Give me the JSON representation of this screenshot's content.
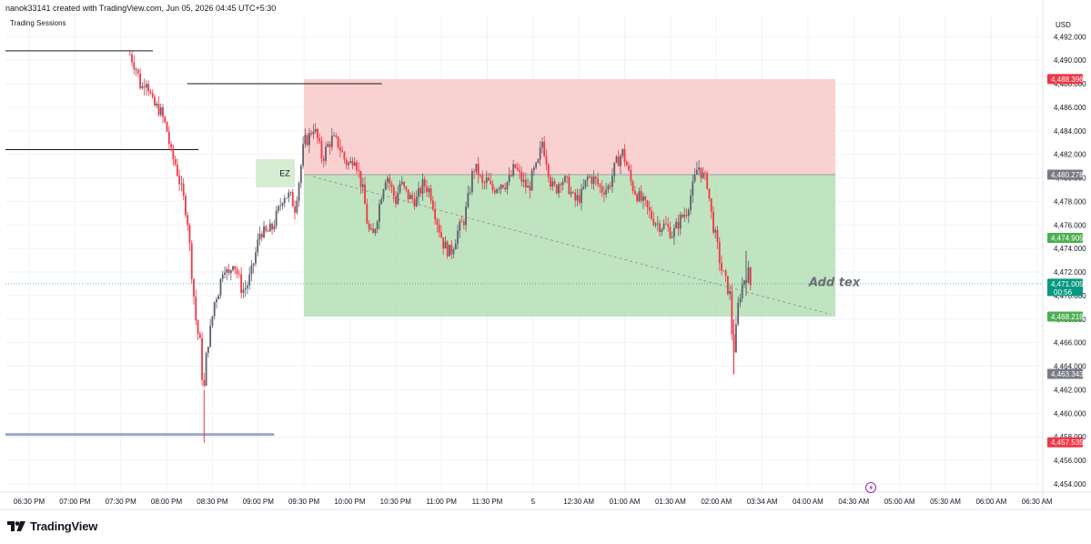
{
  "header": {
    "attribution": "nanok33141 created with TradingView.com, Jun 05, 2026 04:45 UTC+5:30"
  },
  "indicator": {
    "label": "Trading Sessions"
  },
  "footer": {
    "brand": "TradingView"
  },
  "chart_data": {
    "type": "candlestick",
    "currency": "USD",
    "ylim": [
      4453.3,
      4493.8
    ],
    "y_ticks": [
      "4,492.000",
      "4,490.000",
      "4,488.000",
      "4,486.000",
      "4,484.000",
      "4,482.000",
      "4,480.000",
      "4,478.000",
      "4,476.000",
      "4,474.000",
      "4,472.000",
      "4,470.000",
      "4,468.000",
      "4,466.000",
      "4,464.000",
      "4,462.000",
      "4,460.000",
      "4,458.000",
      "4,456.000",
      "4,454.000"
    ],
    "y_tick_values": [
      4492,
      4490,
      4488,
      4486,
      4484,
      4482,
      4480,
      4478,
      4476,
      4474,
      4472,
      4470,
      4468,
      4466,
      4464,
      4462,
      4460,
      4458,
      4456,
      4454
    ],
    "x_ticks": [
      "06:30 PM",
      "07:00 PM",
      "07:30 PM",
      "08:00 PM",
      "08:30 PM",
      "09:00 PM",
      "09:30 PM",
      "10:00 PM",
      "10:30 PM",
      "11:00 PM",
      "11:30 PM",
      "5",
      "12:30 AM",
      "01:00 AM",
      "01:30 AM",
      "02:00 AM",
      "03:34 AM",
      "04:00 AM",
      "04:30 AM",
      "05:00 AM",
      "05:30 AM",
      "06:00 AM",
      "06:30 AM"
    ],
    "x_tick_index": [
      0,
      1,
      2,
      3,
      4,
      5,
      6,
      7,
      8,
      9,
      10,
      11,
      12,
      13,
      14,
      15,
      16,
      17,
      18,
      19,
      20,
      21,
      22
    ],
    "price_path": [
      [
        2.2,
        4490.5
      ],
      [
        2.35,
        4489.2
      ],
      [
        2.45,
        4487.5
      ],
      [
        2.55,
        4488.6
      ],
      [
        2.7,
        4486.2
      ],
      [
        2.85,
        4485.8
      ],
      [
        3.0,
        4484.2
      ],
      [
        3.1,
        4482.0
      ],
      [
        3.2,
        4481.1
      ],
      [
        3.3,
        4479.4
      ],
      [
        3.45,
        4476.8
      ],
      [
        3.55,
        4472.0
      ],
      [
        3.65,
        4467.5
      ],
      [
        3.75,
        4465.5
      ],
      [
        3.8,
        4461.0
      ],
      [
        3.88,
        4465.6
      ],
      [
        3.95,
        4466.9
      ],
      [
        4.05,
        4469.6
      ],
      [
        4.15,
        4470.6
      ],
      [
        4.25,
        4472.8
      ],
      [
        4.35,
        4471.5
      ],
      [
        4.45,
        4473.0
      ],
      [
        4.55,
        4471.8
      ],
      [
        4.65,
        4470.4
      ],
      [
        4.75,
        4470.8
      ],
      [
        4.85,
        4471.9
      ],
      [
        4.95,
        4473.7
      ],
      [
        5.05,
        4475.6
      ],
      [
        5.15,
        4475.2
      ],
      [
        5.3,
        4475.7
      ],
      [
        5.45,
        4477.3
      ],
      [
        5.55,
        4478.6
      ],
      [
        5.7,
        4478.4
      ],
      [
        5.8,
        4477.5
      ],
      [
        5.9,
        4480.0
      ],
      [
        6.0,
        4483.0
      ],
      [
        6.1,
        4483.4
      ],
      [
        6.2,
        4484.4
      ],
      [
        6.3,
        4483.2
      ],
      [
        6.4,
        4481.6
      ],
      [
        6.5,
        4482.6
      ],
      [
        6.6,
        4483.3
      ],
      [
        6.75,
        4482.9
      ],
      [
        6.9,
        4481.4
      ],
      [
        7.0,
        4481.1
      ],
      [
        7.1,
        4482.0
      ],
      [
        7.2,
        4480.3
      ],
      [
        7.3,
        4478.6
      ],
      [
        7.4,
        4475.6
      ],
      [
        7.5,
        4474.9
      ],
      [
        7.6,
        4476.8
      ],
      [
        7.7,
        4478.9
      ],
      [
        7.8,
        4480.4
      ],
      [
        7.9,
        4479.2
      ],
      [
        8.0,
        4478.0
      ],
      [
        8.1,
        4479.6
      ],
      [
        8.2,
        4478.9
      ],
      [
        8.3,
        4478.3
      ],
      [
        8.45,
        4478.1
      ],
      [
        8.6,
        4479.5
      ],
      [
        8.75,
        4478.9
      ],
      [
        8.9,
        4476.4
      ],
      [
        9.05,
        4474.3
      ],
      [
        9.2,
        4473.6
      ],
      [
        9.35,
        4475.4
      ],
      [
        9.5,
        4476.5
      ],
      [
        9.6,
        4478.6
      ],
      [
        9.7,
        4480.9
      ],
      [
        9.8,
        4480.5
      ],
      [
        9.9,
        4479.3
      ],
      [
        10.0,
        4479.8
      ],
      [
        10.1,
        4478.9
      ],
      [
        10.2,
        4479.3
      ],
      [
        10.3,
        4479.6
      ],
      [
        10.4,
        4479.5
      ],
      [
        10.5,
        4479.9
      ],
      [
        10.6,
        4481.0
      ],
      [
        10.7,
        4480.2
      ],
      [
        10.8,
        4479.5
      ],
      [
        10.9,
        4479.0
      ],
      [
        11.0,
        4480.4
      ],
      [
        11.1,
        4481.0
      ],
      [
        11.2,
        4483.1
      ],
      [
        11.3,
        4481.4
      ],
      [
        11.4,
        4479.3
      ],
      [
        11.5,
        4479.0
      ],
      [
        11.6,
        4480.0
      ],
      [
        11.75,
        4479.5
      ],
      [
        11.9,
        4478.0
      ],
      [
        12.05,
        4478.5
      ],
      [
        12.2,
        4480.1
      ],
      [
        12.35,
        4479.8
      ],
      [
        12.5,
        4479.0
      ],
      [
        12.65,
        4479.2
      ],
      [
        12.8,
        4481.1
      ],
      [
        12.95,
        4482.2
      ],
      [
        13.05,
        4481.0
      ],
      [
        13.15,
        4479.4
      ],
      [
        13.3,
        4478.4
      ],
      [
        13.45,
        4477.6
      ],
      [
        13.6,
        4476.6
      ],
      [
        13.75,
        4476.0
      ],
      [
        13.9,
        4475.9
      ],
      [
        14.05,
        4475.2
      ],
      [
        14.2,
        4476.4
      ],
      [
        14.35,
        4477.2
      ],
      [
        14.5,
        4479.4
      ],
      [
        14.6,
        4481.1
      ],
      [
        14.7,
        4480.2
      ],
      [
        14.8,
        4479.6
      ],
      [
        14.9,
        4476.6
      ],
      [
        15.0,
        4474.6
      ],
      [
        15.1,
        4472.4
      ],
      [
        15.2,
        4471.2
      ],
      [
        15.3,
        4470.0
      ],
      [
        15.35,
        4466.1
      ],
      [
        15.4,
        4465.2
      ],
      [
        15.45,
        4468.3
      ],
      [
        15.5,
        4469.9
      ],
      [
        15.6,
        4471.4
      ],
      [
        15.7,
        4471.9
      ],
      [
        15.75,
        4470.8
      ]
    ],
    "price_levels": [
      {
        "value": "4,488.396",
        "num": 4488.396,
        "color": "#f23645"
      },
      {
        "value": "4,480.278",
        "num": 4480.278,
        "color": "#787b86"
      },
      {
        "value": "4,474.905",
        "num": 4474.905,
        "color": "#4caf50"
      },
      {
        "value": "4,471.005",
        "num": 4471.005,
        "color": "#089981",
        "countdown": "00:56"
      },
      {
        "value": "4,468.219",
        "num": 4468.219,
        "color": "#4caf50"
      },
      {
        "value": "4,463.343",
        "num": 4463.343,
        "color": "#787b86"
      },
      {
        "value": "4,457.535",
        "num": 4457.535,
        "color": "#f23645"
      }
    ],
    "position_tool": {
      "entry": 4480.278,
      "stop": 4488.396,
      "target": 4468.219,
      "start_index": 6.0,
      "end_index": 17.6
    },
    "zone": {
      "label": "EZ",
      "top": 4481.6,
      "bottom": 4479.2,
      "start_index": 4.95,
      "end_index": 5.8
    },
    "annotation": {
      "text": "Add tex",
      "index": 17.2,
      "price": 4471.1
    },
    "session_lines": [
      {
        "y": 4490.8,
        "x_start": 0,
        "x_end": 2.7
      },
      {
        "y": 4488.0,
        "x_start": 3.45,
        "x_end": 7.7
      },
      {
        "y": 4482.4,
        "x_start": 0,
        "x_end": 3.7
      },
      {
        "y": 4458.2,
        "x_start": 0,
        "x_end": 5.35,
        "thick": true
      }
    ],
    "colors": {
      "up": "#089981",
      "down": "#f23645",
      "stop_zone": "#f7c6c6",
      "target_zone": "#b5deb5",
      "ez_zone": "#d6ecd3"
    }
  }
}
